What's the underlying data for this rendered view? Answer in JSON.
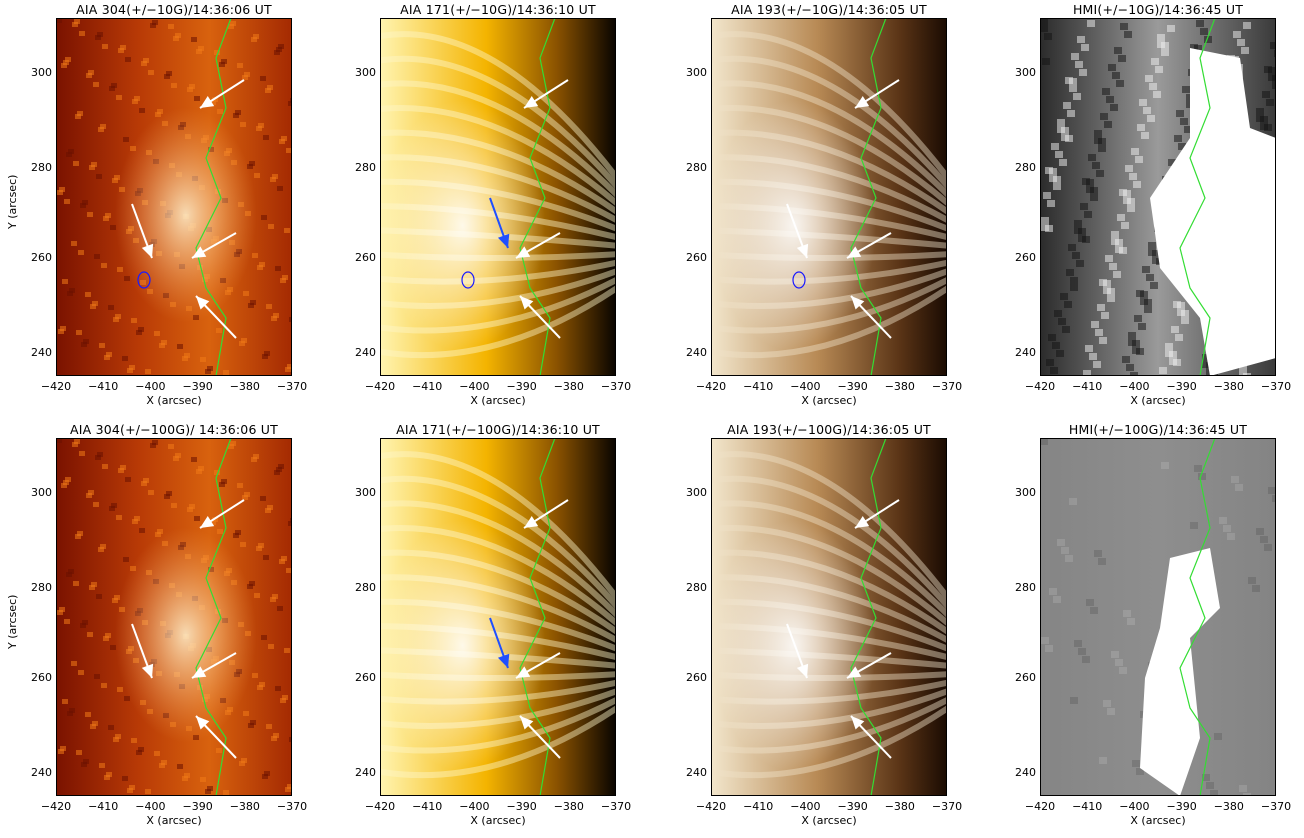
{
  "figure": {
    "x_axis": {
      "label": "X (arcsec)",
      "ticks": [
        "−420",
        "−410",
        "−400",
        "−390",
        "−380",
        "−370"
      ],
      "range": [
        -420,
        -370
      ]
    },
    "y_axis": {
      "label": "Y (arcsec)",
      "ticks": [
        "300",
        "280",
        "260",
        "240"
      ],
      "range": [
        235,
        310
      ]
    },
    "colors": {
      "contour_green": "#33dd33",
      "contour_blue": "#1a1aff",
      "arrow_white": "#ffffff",
      "arrow_blue": "#1f4fff"
    },
    "panels": [
      {
        "id": "p1",
        "title": "AIA 304(+/−10G)/14:36:06 UT",
        "channel": "304",
        "row": 0
      },
      {
        "id": "p2",
        "title": "AIA 171(+/−10G)/14:36:10 UT",
        "channel": "171",
        "row": 0
      },
      {
        "id": "p3",
        "title": "AIA 193(+/−10G)/14:36:05 UT",
        "channel": "193",
        "row": 0
      },
      {
        "id": "p4",
        "title": "HMI(+/−10G)/14:36:45 UT",
        "channel": "hmi",
        "row": 0
      },
      {
        "id": "p5",
        "title": "AIA 304(+/−100G)/ 14:36:06 UT",
        "channel": "304",
        "row": 1
      },
      {
        "id": "p6",
        "title": "AIA 171(+/−100G)/14:36:10 UT",
        "channel": "171",
        "row": 1
      },
      {
        "id": "p7",
        "title": "AIA 193(+/−100G)/14:36:05 UT",
        "channel": "193",
        "row": 1
      },
      {
        "id": "p8",
        "title": "HMI(+/−100G)/14:36:45 UT",
        "channel": "hmi100",
        "row": 1
      }
    ]
  }
}
